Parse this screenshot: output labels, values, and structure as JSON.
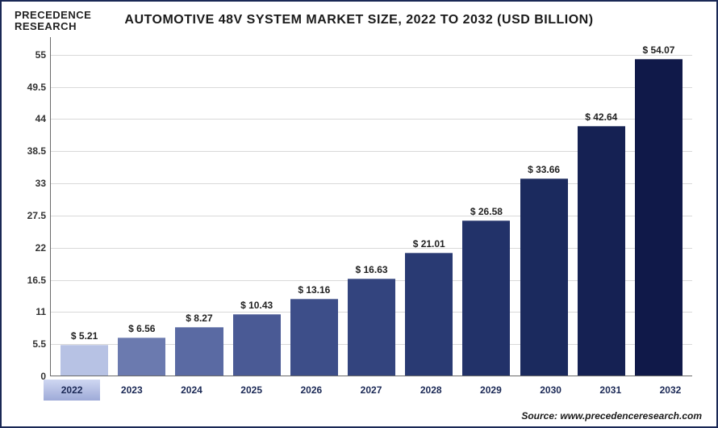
{
  "brand": {
    "line1": "PRECEDENCE",
    "line2": "RESEARCH"
  },
  "title": "AUTOMOTIVE 48V SYSTEM MARKET SIZE, 2022 TO 2032 (USD BILLION)",
  "source": "Source: www.precedenceresearch.com",
  "chart": {
    "type": "bar",
    "categories": [
      "2022",
      "2023",
      "2024",
      "2025",
      "2026",
      "2027",
      "2028",
      "2029",
      "2030",
      "2031",
      "2032"
    ],
    "values": [
      5.21,
      6.56,
      8.27,
      10.43,
      13.16,
      16.63,
      21.01,
      26.58,
      33.66,
      42.64,
      54.07
    ],
    "value_labels": [
      "$ 5.21",
      "$ 6.56",
      "$ 8.27",
      "$ 10.43",
      "$ 13.16",
      "$ 16.63",
      "$ 21.01",
      "$ 26.58",
      "$ 33.66",
      "$ 42.64",
      "$ 54.07"
    ],
    "bar_colors": [
      "#b7c2e4",
      "#6b7aaf",
      "#5a6aa3",
      "#4a5a95",
      "#3d4e89",
      "#33447e",
      "#293a73",
      "#223269",
      "#1b2a5e",
      "#152153",
      "#101949"
    ],
    "active_index": 0,
    "ymax": 58,
    "ymin": 0,
    "yticks": [
      0,
      5.5,
      11,
      16.5,
      22,
      27.5,
      33,
      38.5,
      44,
      49.5,
      55
    ],
    "grid_color": "#d9d9d9",
    "axis_color": "#6a6a6a",
    "background_color": "#ffffff",
    "title_fontsize": 16,
    "tick_fontsize": 12,
    "bar_width_pct": 88
  }
}
